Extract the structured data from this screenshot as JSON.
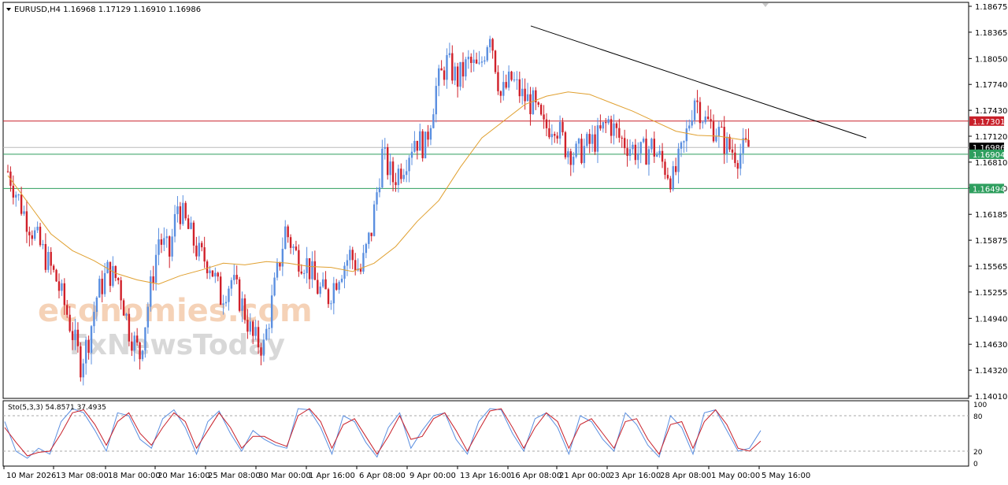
{
  "chart_data": [
    {
      "type": "candlestick",
      "title": "EURUSD,H4  1.16968 1.17129 1.16910 1.16986",
      "ylim": [
        1.1401,
        1.18675
      ],
      "y_ticks": [
        "1.18675",
        "1.18365",
        "1.18050",
        "1.17740",
        "1.17430",
        "1.17120",
        "1.16810",
        "1.16500",
        "1.16185",
        "1.15875",
        "1.15565",
        "1.15255",
        "1.14940",
        "1.14630",
        "1.14320",
        "1.14010"
      ],
      "x_ticks": [
        "10 Mar 2026",
        "13 Mar 08:00",
        "18 Mar 00:00",
        "20 Mar 16:00",
        "25 Mar 08:00",
        "30 Mar 00:00",
        "1 Apr 16:00",
        "6 Apr 08:00",
        "9 Apr 00:00",
        "13 Apr 16:00",
        "16 Apr 08:00",
        "21 Apr 00:00",
        "23 Apr 16:00",
        "28 Apr 08:00",
        "1 May 00:00",
        "5 May 16:00"
      ],
      "horizontal_levels": [
        {
          "label": "1.17301",
          "value": 1.17301,
          "color": "#c8202a"
        },
        {
          "label": "1.16986",
          "value": 1.16986,
          "color": "#000000"
        },
        {
          "label": "1.16904",
          "value": 1.16904,
          "color": "#2e9e5e"
        },
        {
          "label": "1.16494",
          "value": 1.16494,
          "color": "#2e9e5e"
        }
      ],
      "trendline": {
        "from": [
          "16 Apr 08:00",
          1.1844
        ],
        "to": [
          "5 May 16:00",
          1.171
        ],
        "color": "#000000"
      },
      "moving_average_color": "#e0a030",
      "up_color": "#5b8fe0",
      "down_color": "#d0202a",
      "close_path": [
        [
          0,
          1.167
        ],
        [
          6,
          1.162
        ],
        [
          12,
          1.158
        ],
        [
          18,
          1.154
        ],
        [
          22,
          1.15
        ],
        [
          27,
          1.144
        ],
        [
          30,
          1.147
        ],
        [
          33,
          1.152
        ],
        [
          37,
          1.155
        ],
        [
          41,
          1.154
        ],
        [
          45,
          1.148
        ],
        [
          49,
          1.145
        ],
        [
          53,
          1.153
        ],
        [
          56,
          1.159
        ],
        [
          60,
          1.157
        ],
        [
          63,
          1.163
        ],
        [
          67,
          1.16
        ],
        [
          71,
          1.157
        ],
        [
          75,
          1.156
        ],
        [
          79,
          1.152
        ],
        [
          83,
          1.154
        ],
        [
          87,
          1.151
        ],
        [
          91,
          1.147
        ],
        [
          95,
          1.146
        ],
        [
          99,
          1.153
        ],
        [
          103,
          1.16
        ],
        [
          107,
          1.157
        ],
        [
          111,
          1.156
        ],
        [
          115,
          1.153
        ],
        [
          119,
          1.152
        ],
        [
          123,
          1.155
        ],
        [
          127,
          1.157
        ],
        [
          131,
          1.155
        ],
        [
          135,
          1.16
        ],
        [
          139,
          1.169
        ],
        [
          143,
          1.166
        ],
        [
          147,
          1.168
        ],
        [
          151,
          1.171
        ],
        [
          155,
          1.17
        ],
        [
          159,
          1.177
        ],
        [
          163,
          1.18
        ],
        [
          167,
          1.178
        ],
        [
          171,
          1.18
        ],
        [
          175,
          1.179
        ],
        [
          179,
          1.184
        ],
        [
          183,
          1.176
        ],
        [
          187,
          1.178
        ],
        [
          191,
          1.176
        ],
        [
          195,
          1.175
        ],
        [
          199,
          1.172
        ],
        [
          203,
          1.173
        ],
        [
          207,
          1.17
        ],
        [
          211,
          1.169
        ],
        [
          215,
          1.17
        ],
        [
          219,
          1.171
        ],
        [
          223,
          1.173
        ],
        [
          227,
          1.171
        ],
        [
          231,
          1.17
        ],
        [
          235,
          1.169
        ],
        [
          239,
          1.17
        ],
        [
          243,
          1.168
        ],
        [
          247,
          1.166
        ],
        [
          251,
          1.17
        ],
        [
          255,
          1.176
        ],
        [
          259,
          1.173
        ],
        [
          263,
          1.172
        ],
        [
          267,
          1.17
        ],
        [
          271,
          1.169
        ],
        [
          275,
          1.1699
        ]
      ],
      "ma_path": [
        [
          0,
          1.1665
        ],
        [
          8,
          1.163
        ],
        [
          16,
          1.1595
        ],
        [
          24,
          1.1575
        ],
        [
          32,
          1.1563
        ],
        [
          40,
          1.1548
        ],
        [
          48,
          1.154
        ],
        [
          56,
          1.1535
        ],
        [
          64,
          1.1545
        ],
        [
          72,
          1.1552
        ],
        [
          80,
          1.156
        ],
        [
          88,
          1.1558
        ],
        [
          96,
          1.1562
        ],
        [
          104,
          1.156
        ],
        [
          112,
          1.1556
        ],
        [
          120,
          1.1555
        ],
        [
          128,
          1.155
        ],
        [
          136,
          1.156
        ],
        [
          144,
          1.158
        ],
        [
          152,
          1.161
        ],
        [
          160,
          1.1635
        ],
        [
          168,
          1.1675
        ],
        [
          176,
          1.171
        ],
        [
          184,
          1.173
        ],
        [
          192,
          1.175
        ],
        [
          200,
          1.176
        ],
        [
          208,
          1.1765
        ],
        [
          216,
          1.1762
        ],
        [
          224,
          1.1752
        ],
        [
          232,
          1.1742
        ],
        [
          240,
          1.173
        ],
        [
          248,
          1.1718
        ],
        [
          256,
          1.1713
        ],
        [
          264,
          1.1712
        ],
        [
          272,
          1.1708
        ],
        [
          275,
          1.1708
        ]
      ]
    },
    {
      "type": "line",
      "title": "Sto(5,3,3) 54.8571 37.4935",
      "ylim": [
        0,
        100
      ],
      "y_ticks": [
        "100",
        "80",
        "20",
        "0"
      ],
      "levels": [
        80,
        20
      ],
      "series": [
        {
          "color": "#5b8fe0",
          "values": [
            70,
            20,
            8,
            25,
            15,
            70,
            92,
            85,
            55,
            20,
            85,
            80,
            40,
            25,
            75,
            90,
            60,
            15,
            70,
            88,
            50,
            20,
            55,
            40,
            30,
            25,
            92,
            90,
            60,
            15,
            80,
            70,
            35,
            10,
            60,
            85,
            25,
            55,
            80,
            85,
            40,
            15,
            70,
            92,
            90,
            50,
            20,
            75,
            85,
            60,
            15,
            80,
            70,
            40,
            20,
            85,
            65,
            30,
            10,
            80,
            60,
            15,
            85,
            90,
            55,
            20,
            25,
            55
          ]
        },
        {
          "color": "#c8202a",
          "values": [
            60,
            35,
            12,
            18,
            20,
            50,
            85,
            90,
            65,
            30,
            70,
            85,
            50,
            30,
            60,
            85,
            70,
            25,
            55,
            85,
            60,
            25,
            45,
            45,
            35,
            28,
            80,
            92,
            70,
            25,
            65,
            75,
            45,
            15,
            45,
            80,
            40,
            45,
            75,
            85,
            55,
            20,
            55,
            88,
            92,
            60,
            25,
            60,
            85,
            70,
            25,
            65,
            75,
            50,
            25,
            70,
            75,
            40,
            15,
            65,
            70,
            25,
            70,
            90,
            65,
            25,
            20,
            37
          ]
        }
      ]
    }
  ],
  "watermark": {
    "line1": "economies.com",
    "line2": "FxNewsToday"
  }
}
